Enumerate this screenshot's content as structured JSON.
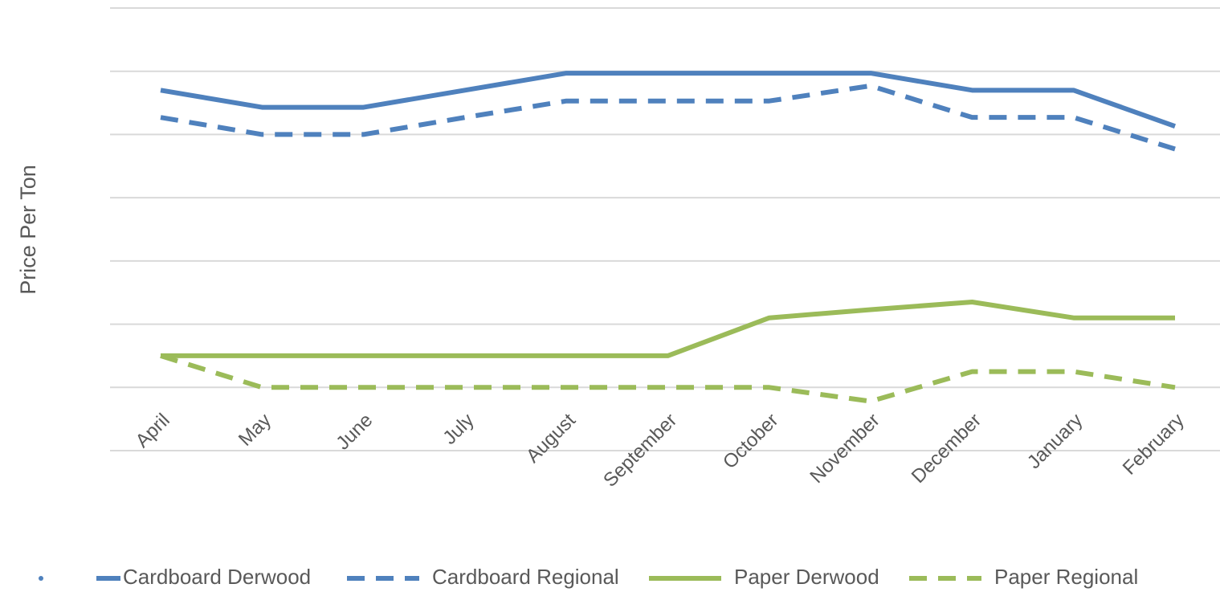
{
  "chart_data": {
    "type": "line",
    "title": "",
    "xlabel": "",
    "ylabel": "Price Per Ton",
    "ylim": [
      0,
      7
    ],
    "grid": true,
    "legend_position": "bottom",
    "categories": [
      "April",
      "May",
      "June",
      "July",
      "August",
      "September",
      "October",
      "November",
      "December",
      "January",
      "February"
    ],
    "series": [
      {
        "name": "Cardboard Derwood",
        "color": "#4f81bd",
        "dash": "solid",
        "values": [
          5.7,
          5.43,
          5.43,
          5.7,
          5.97,
          5.97,
          5.97,
          5.97,
          5.7,
          5.7,
          5.13
        ]
      },
      {
        "name": "Cardboard Regional",
        "color": "#4f81bd",
        "dash": "dashed",
        "values": [
          5.27,
          5.0,
          5.0,
          5.27,
          5.53,
          5.53,
          5.53,
          5.77,
          5.27,
          5.27,
          4.77
        ]
      },
      {
        "name": "Paper Derwood",
        "color": "#9bbb59",
        "dash": "solid",
        "values": [
          1.5,
          1.5,
          1.5,
          1.5,
          1.5,
          1.5,
          2.1,
          2.23,
          2.35,
          2.1,
          2.1
        ]
      },
      {
        "name": "Paper Regional",
        "color": "#9bbb59",
        "dash": "dashed",
        "values": [
          1.5,
          1.0,
          1.0,
          1.0,
          1.0,
          1.0,
          1.0,
          0.78,
          1.25,
          1.25,
          1.0
        ]
      }
    ]
  }
}
